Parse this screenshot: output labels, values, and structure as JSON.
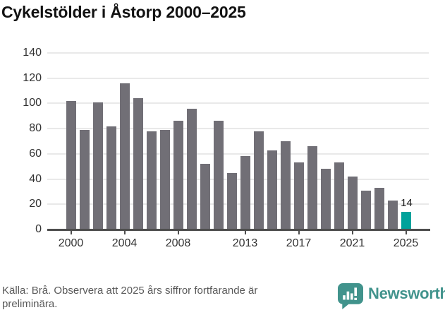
{
  "title": "Cykelstölder i Åstorp 2000–2025",
  "source": {
    "line1": "Källa: Brå. Observera att 2025 års siffror fortfarande är",
    "line2": "preliminära."
  },
  "branding": {
    "wordmark": "Newsworthy",
    "icon": "newsworthy-speech-bubble-bar-chart-icon"
  },
  "colors": {
    "bar_default": "#716F76",
    "bar_highlight": "#00A29B",
    "gridline": "#E9E9E9",
    "axis": "#4D4D4D",
    "tick_label": "#333333",
    "title_text": "#121212",
    "source_text": "#595959",
    "brand_teal": "#41938C",
    "data_label": "#1E1E1E"
  },
  "chart_data": {
    "type": "bar",
    "title": "Cykelstölder i Åstorp 2000–2025",
    "x": [
      2000,
      2001,
      2002,
      2003,
      2004,
      2005,
      2006,
      2007,
      2008,
      2009,
      2010,
      2011,
      2012,
      2013,
      2014,
      2015,
      2016,
      2017,
      2018,
      2019,
      2020,
      2021,
      2022,
      2023,
      2024,
      2025
    ],
    "values": [
      102,
      79,
      101,
      82,
      116,
      104,
      78,
      79,
      86,
      96,
      52,
      86,
      45,
      58,
      78,
      63,
      70,
      53,
      66,
      48,
      53,
      42,
      31,
      33,
      23,
      14
    ],
    "highlight_index": 25,
    "annotations": [
      {
        "x": 2025,
        "text": "14"
      }
    ],
    "ylim": [
      0,
      140
    ],
    "y_ticks": [
      0,
      20,
      40,
      60,
      80,
      100,
      120,
      140
    ],
    "x_tick_years": [
      2000,
      2004,
      2008,
      2013,
      2017,
      2021,
      2025
    ],
    "grid": "horizontal",
    "legend": "none"
  }
}
